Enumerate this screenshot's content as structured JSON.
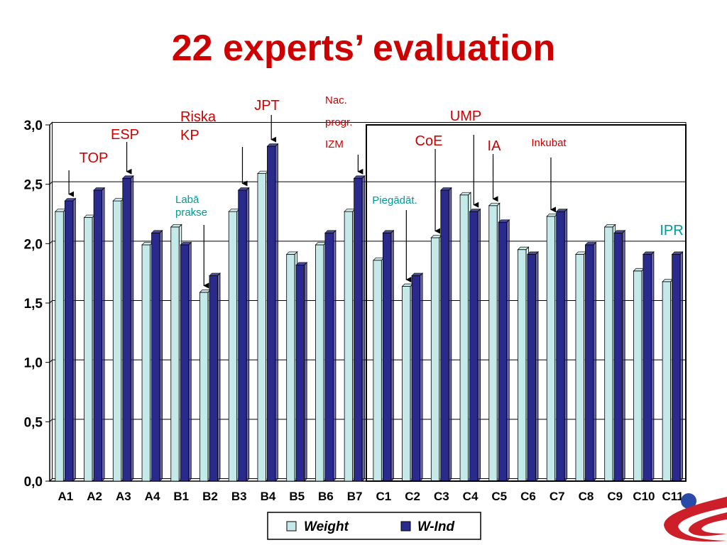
{
  "slide": {
    "title": "22 experts’ evaluation"
  },
  "colors": {
    "title": "#cc0000",
    "weight": "#c5e8e8",
    "w_ind": "#2a2a8c",
    "annotation_red": "#cc0000",
    "annotation_teal": "#009999",
    "logo_blue": "#2a4aa8",
    "logo_red": "#cc1f2a"
  },
  "chart_data": {
    "type": "bar",
    "categories": [
      "A1",
      "A2",
      "A3",
      "A4",
      "B1",
      "B2",
      "B3",
      "B4",
      "B5",
      "B6",
      "B7",
      "C1",
      "C2",
      "C3",
      "C4",
      "C5",
      "C6",
      "C7",
      "C8",
      "C9",
      "C10",
      "C11"
    ],
    "series": [
      {
        "name": "Weight",
        "values": [
          2.27,
          2.22,
          2.36,
          1.99,
          2.14,
          1.59,
          2.27,
          2.59,
          1.91,
          1.99,
          2.27,
          1.86,
          1.64,
          2.05,
          2.41,
          2.32,
          1.95,
          2.23,
          1.91,
          2.14,
          1.77,
          1.68
        ]
      },
      {
        "name": "W-Ind",
        "values": [
          2.36,
          2.45,
          2.55,
          2.09,
          1.99,
          1.73,
          2.45,
          2.82,
          1.82,
          2.09,
          2.55,
          2.09,
          1.73,
          2.45,
          2.27,
          2.18,
          1.91,
          2.27,
          1.99,
          2.09,
          1.91,
          1.91
        ]
      }
    ],
    "ylim": [
      0,
      3
    ],
    "yticks": [
      0,
      0.5,
      1,
      1.5,
      2,
      2.5,
      3
    ],
    "ytick_labels": [
      "0,0",
      "0,5",
      "1,0",
      "1,5",
      "2,0",
      "2,5",
      "3,0"
    ],
    "grid": true,
    "legend_position": "bottom",
    "annotations": [
      {
        "lines": [
          "TOP"
        ],
        "color": "red",
        "target_index": 0,
        "series": 1,
        "size": "large"
      },
      {
        "lines": [
          "ESP"
        ],
        "color": "red",
        "target_index": 2,
        "series": 1,
        "size": "large"
      },
      {
        "lines": [
          "Riska",
          "KP"
        ],
        "color": "red",
        "target_index": 6,
        "series": 1,
        "size": "large"
      },
      {
        "lines": [
          "JPT"
        ],
        "color": "red",
        "target_index": 7,
        "series": 1,
        "size": "large"
      },
      {
        "lines": [
          "Labā",
          "prakse"
        ],
        "color": "teal",
        "target_index": 5,
        "series": 0,
        "size": "small"
      },
      {
        "lines": [
          "Nac.",
          "progr.",
          "IZM"
        ],
        "color": "red",
        "target_index": 10,
        "series": 1,
        "size": "small"
      },
      {
        "lines": [
          "Piegādāt."
        ],
        "color": "teal",
        "target_index": 12,
        "series": 0,
        "size": "small"
      },
      {
        "lines": [
          "CoE"
        ],
        "color": "red",
        "target_index": 13,
        "series": 0,
        "size": "large"
      },
      {
        "lines": [
          "UMP"
        ],
        "color": "red",
        "target_index": 14,
        "series": 1,
        "size": "large"
      },
      {
        "lines": [
          "IA"
        ],
        "color": "red",
        "target_index": 15,
        "series": 0,
        "size": "large"
      },
      {
        "lines": [
          "Inkubat"
        ],
        "color": "red",
        "target_index": 17,
        "series": 0,
        "size": "small"
      },
      {
        "lines": [
          "IPR"
        ],
        "color": "teal",
        "target_index": null,
        "series": null,
        "size": "large"
      }
    ]
  }
}
